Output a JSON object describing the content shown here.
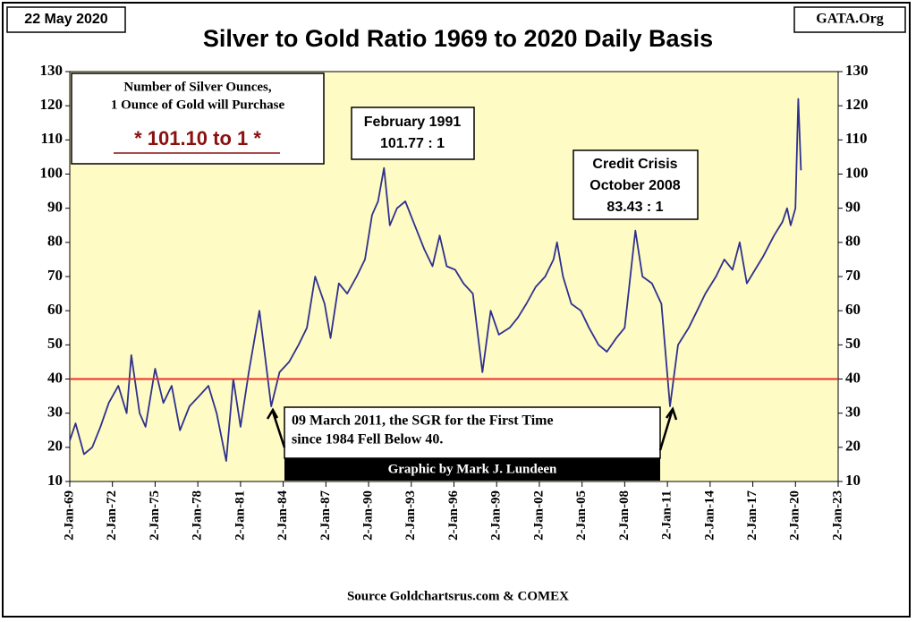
{
  "chart_data": {
    "type": "line",
    "title": "Silver to Gold Ratio 1969 to 2020 Daily Basis",
    "date_label": "22 May 2020",
    "brand": "GATA.Org",
    "source": "Source Goldchartsrus.com & COMEX",
    "credit": "Graphic by Mark J. Lundeen",
    "annotations": [
      {
        "lines": [
          "Number of Silver Ounces,",
          "1 Ounce of Gold will Purchase",
          "* 101.10 to 1 *"
        ]
      },
      {
        "lines": [
          "February 1991",
          "101.77 : 1"
        ]
      },
      {
        "lines": [
          "Credit Crisis",
          "October 2008",
          "83.43 : 1"
        ]
      },
      {
        "lines": [
          "09 March 2011, the SGR for the First Time",
          "since 1984 Fell Below 40."
        ]
      }
    ],
    "color": "#2e318f",
    "hline": {
      "value": 40,
      "color": "#e8302c"
    },
    "xlim": [
      "1969-01-02",
      "2023-01-02"
    ],
    "xticks": [
      {
        "value": "1969-01-02",
        "label": "2-Jan-69"
      },
      {
        "value": "1972-01-02",
        "label": "2-Jan-72"
      },
      {
        "value": "1975-01-02",
        "label": "2-Jan-75"
      },
      {
        "value": "1978-01-02",
        "label": "2-Jan-78"
      },
      {
        "value": "1981-01-02",
        "label": "2-Jan-81"
      },
      {
        "value": "1984-01-02",
        "label": "2-Jan-84"
      },
      {
        "value": "1987-01-02",
        "label": "2-Jan-87"
      },
      {
        "value": "1990-01-02",
        "label": "2-Jan-90"
      },
      {
        "value": "1993-01-02",
        "label": "2-Jan-93"
      },
      {
        "value": "1996-01-02",
        "label": "2-Jan-96"
      },
      {
        "value": "1999-01-02",
        "label": "2-Jan-99"
      },
      {
        "value": "2002-01-02",
        "label": "2-Jan-02"
      },
      {
        "value": "2005-01-02",
        "label": "2-Jan-05"
      },
      {
        "value": "2008-01-02",
        "label": "2-Jan-08"
      },
      {
        "value": "2011-01-02",
        "label": "2-Jan-11"
      },
      {
        "value": "2014-01-02",
        "label": "2-Jan-14"
      },
      {
        "value": "2017-01-02",
        "label": "2-Jan-17"
      },
      {
        "value": "2020-01-02",
        "label": "2-Jan-20"
      },
      {
        "value": "2023-01-02",
        "label": "2-Jan-23"
      }
    ],
    "ylim": [
      10,
      130
    ],
    "yticks": [
      10,
      20,
      30,
      40,
      50,
      60,
      70,
      80,
      90,
      100,
      110,
      120,
      130
    ],
    "x": [
      "1969-01-02",
      "1969-06-01",
      "1970-01-01",
      "1970-08-01",
      "1971-03-01",
      "1971-10-01",
      "1972-06-01",
      "1973-01-01",
      "1973-05-01",
      "1973-12-01",
      "1974-05-01",
      "1975-01-01",
      "1975-08-01",
      "1976-03-01",
      "1976-10-01",
      "1977-06-01",
      "1978-02-01",
      "1978-10-01",
      "1979-05-01",
      "1980-01-01",
      "1980-07-01",
      "1981-01-01",
      "1981-08-01",
      "1982-05-01",
      "1983-03-01",
      "1983-10-01",
      "1984-06-01",
      "1985-02-01",
      "1985-09-01",
      "1986-04-01",
      "1986-12-01",
      "1987-05-01",
      "1987-12-01",
      "1988-07-01",
      "1989-03-01",
      "1989-10-01",
      "1990-04-01",
      "1990-09-01",
      "1991-02-01",
      "1991-07-01",
      "1992-01-01",
      "1992-08-01",
      "1993-04-01",
      "1993-12-01",
      "1994-07-01",
      "1995-01-01",
      "1995-07-01",
      "1996-02-01",
      "1996-09-01",
      "1997-05-01",
      "1998-01-01",
      "1998-08-01",
      "1999-03-01",
      "1999-12-01",
      "2000-07-01",
      "2001-02-01",
      "2001-10-01",
      "2002-06-01",
      "2003-01-01",
      "2003-04-01",
      "2003-09-01",
      "2004-04-01",
      "2004-12-01",
      "2005-07-01",
      "2006-03-01",
      "2006-10-01",
      "2007-06-01",
      "2008-01-01",
      "2008-10-01",
      "2009-04-01",
      "2009-12-01",
      "2010-08-01",
      "2011-03-09",
      "2011-10-01",
      "2012-07-01",
      "2013-02-01",
      "2013-09-01",
      "2014-06-01",
      "2015-01-01",
      "2015-08-01",
      "2016-02-01",
      "2016-08-01",
      "2017-03-01",
      "2017-10-01",
      "2018-07-01",
      "2019-02-01",
      "2019-06-01",
      "2019-09-01",
      "2020-01-01",
      "2020-03-15",
      "2020-05-22"
    ],
    "values": [
      22,
      27,
      18,
      20,
      26,
      33,
      38,
      30,
      47,
      30,
      26,
      43,
      33,
      38,
      25,
      32,
      35,
      38,
      30,
      16,
      40,
      26,
      42,
      60,
      32,
      42,
      45,
      50,
      55,
      70,
      62,
      52,
      68,
      65,
      70,
      75,
      88,
      92,
      101.77,
      85,
      90,
      92,
      85,
      78,
      73,
      82,
      73,
      72,
      68,
      65,
      42,
      60,
      53,
      55,
      58,
      62,
      67,
      70,
      75,
      80,
      70,
      62,
      60,
      55,
      50,
      48,
      52,
      55,
      83.43,
      70,
      68,
      62,
      32,
      50,
      55,
      60,
      65,
      70,
      75,
      72,
      80,
      68,
      72,
      76,
      82,
      86,
      90,
      85,
      90,
      122,
      101.1
    ]
  }
}
